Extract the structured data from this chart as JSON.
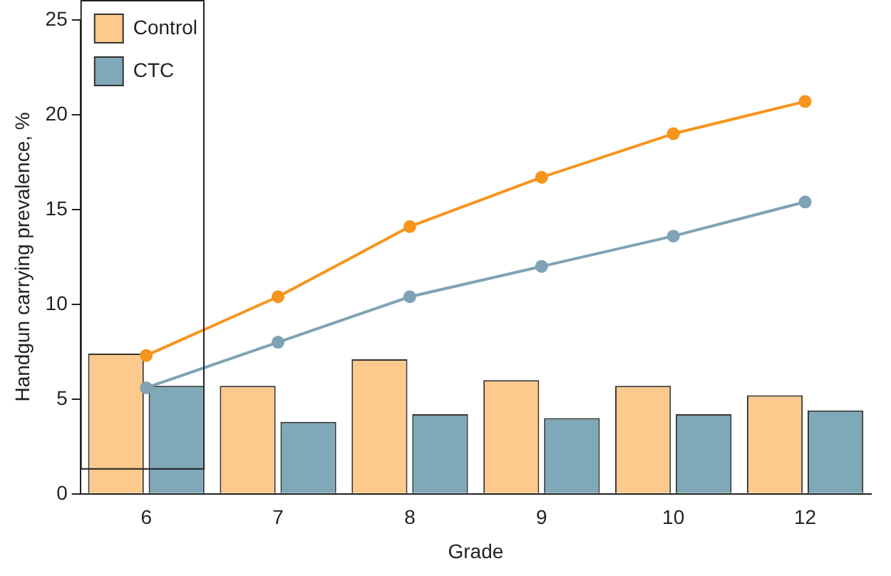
{
  "chart_data": {
    "type": "bar",
    "xlabel": "Grade",
    "ylabel": "Handgun carrying prevalence, %",
    "categories": [
      "6",
      "7",
      "8",
      "9",
      "10",
      "12"
    ],
    "series": [
      {
        "name": "Control",
        "color": "#fdc98c",
        "values": [
          7.4,
          5.7,
          7.1,
          6.0,
          5.7,
          5.2
        ]
      },
      {
        "name": "CTC",
        "color": "#7fa8b8",
        "values": [
          5.7,
          3.8,
          4.2,
          4.0,
          4.2,
          4.4
        ]
      },
      {
        "type": "line",
        "color": "#f7941d",
        "values": [
          7.3,
          10.4,
          14.1,
          16.7,
          19.0,
          20.7
        ]
      },
      {
        "type": "line",
        "color": "#7fa3b4",
        "values": [
          5.6,
          8.0,
          10.4,
          12.0,
          13.6,
          15.4
        ]
      }
    ],
    "ylim": [
      0,
      25
    ],
    "yticks": [
      0,
      5,
      10,
      15,
      20,
      25
    ],
    "grid": false,
    "legend": "top left",
    "marker": "circle",
    "line_style": "solid"
  }
}
